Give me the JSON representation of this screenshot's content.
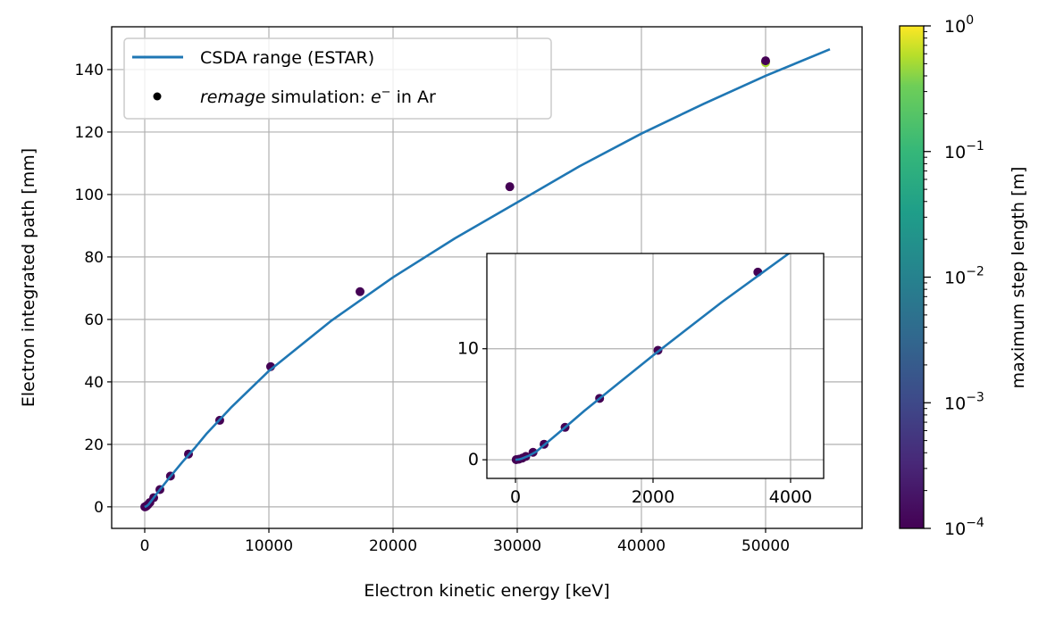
{
  "chart_data": [
    {
      "type": "line+scatter",
      "title": "",
      "xlabel": "Electron kinetic energy [keV]",
      "ylabel": "Electron integrated path [mm]",
      "xlim": [
        -2662,
        57770
      ],
      "ylim": [
        -6.9,
        153.7
      ],
      "xticks": [
        0,
        10000,
        20000,
        30000,
        40000,
        50000
      ],
      "yticks": [
        0,
        20,
        40,
        60,
        80,
        100,
        120,
        140
      ],
      "grid": true,
      "legend": {
        "placement": "top-left",
        "entries": [
          {
            "label": "CSDA range (ESTAR)",
            "marker": "line"
          },
          {
            "label_italic": "remage",
            "label": " simulation: ",
            "label_math": "e",
            "label_sup": "−",
            "label_tail": " in Ar",
            "marker": "dot"
          }
        ]
      },
      "series": [
        {
          "name": "CSDA range (ESTAR)",
          "color": "#1f77b4",
          "x": [
            0,
            10,
            20,
            50,
            100,
            200,
            300,
            500,
            700,
            1000,
            1500,
            2000,
            3000,
            4000,
            5000,
            7000,
            10000,
            15000,
            20000,
            25000,
            30000,
            35000,
            40000,
            45000,
            50000,
            55180
          ],
          "y": [
            0,
            0.002,
            0.006,
            0.035,
            0.12,
            0.38,
            0.72,
            1.75,
            2.8,
            4.4,
            6.9,
            9.4,
            14.2,
            18.7,
            23.5,
            32,
            43.5,
            59.5,
            73.5,
            86,
            97.5,
            109,
            119.5,
            129,
            138,
            146.5
          ]
        },
        {
          "name": "remage simulation: e− in Ar",
          "x": [
            10,
            50,
            100,
            150,
            255,
            416,
            721,
            1223,
            2072,
            3524,
            6040,
            10140,
            17340,
            29400,
            50000,
            50000
          ],
          "y": [
            0.01,
            0.05,
            0.15,
            0.3,
            0.67,
            1.4,
            2.92,
            5.53,
            9.86,
            16.9,
            27.7,
            44.9,
            68.9,
            102.5,
            142.2,
            142.8
          ],
          "step_length_m": [
            0.0001,
            0.0001,
            0.0001,
            0.0001,
            0.0001,
            0.0001,
            0.0001,
            0.0001,
            0.0001,
            0.0001,
            0.0001,
            0.0001,
            0.0001,
            0.0001,
            0.3,
            0.0001
          ]
        }
      ]
    },
    {
      "type": "line+scatter",
      "title": "inset",
      "xlim": [
        -416,
        4481
      ],
      "ylim": [
        -1.68,
        18.58
      ],
      "xticks": [
        0,
        2000,
        4000
      ],
      "yticks": [
        0,
        10
      ],
      "grid": true
    },
    {
      "type": "colorbar",
      "label": "maximum step length [m]",
      "scale": "log",
      "range": [
        0.0001,
        1
      ],
      "colormap": "viridis",
      "ticks": [
        {
          "base": "10",
          "exp": "−4",
          "value": 0.0001
        },
        {
          "base": "10",
          "exp": "−3",
          "value": 0.001
        },
        {
          "base": "10",
          "exp": "−2",
          "value": 0.01
        },
        {
          "base": "10",
          "exp": "−1",
          "value": 0.1
        },
        {
          "base": "10",
          "exp": "0",
          "value": 1
        }
      ]
    }
  ]
}
